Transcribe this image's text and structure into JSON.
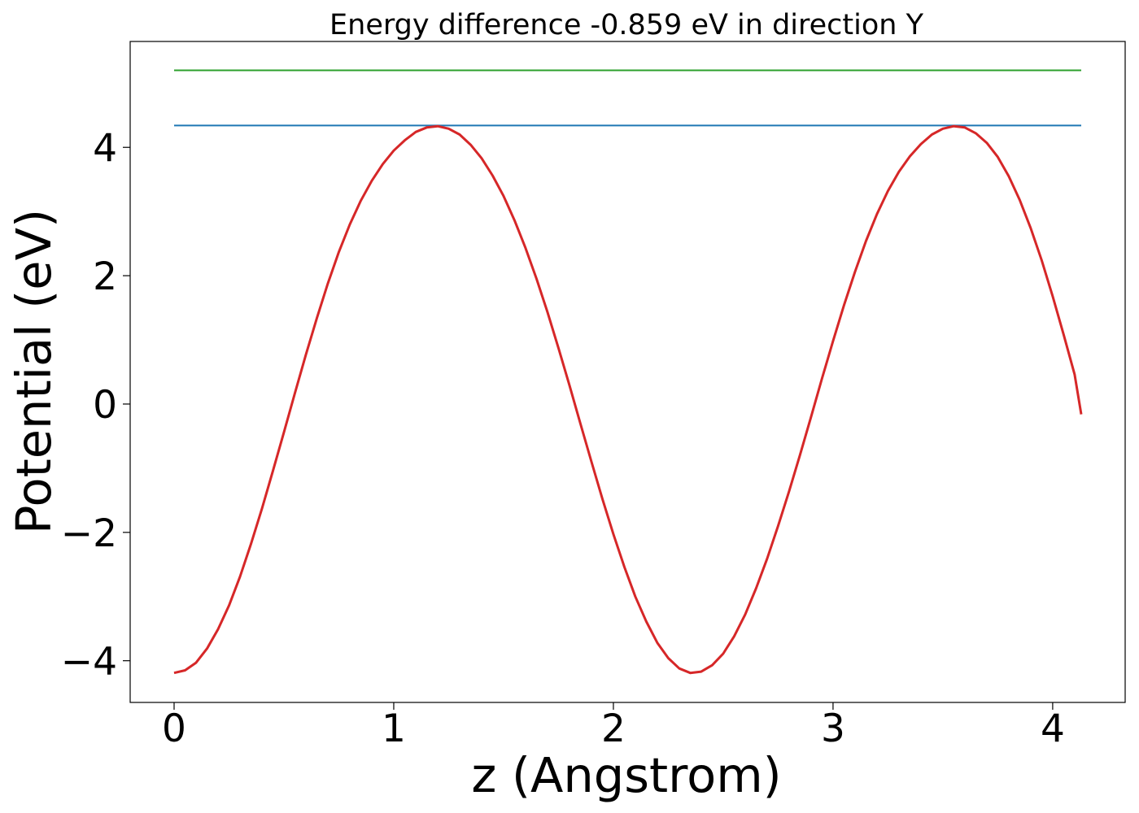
{
  "chart_data": {
    "type": "line",
    "title": "Energy difference -0.859 eV in direction Y",
    "xlabel": "z (Angstrom)",
    "ylabel": "Potential (eV)",
    "xlim": [
      -0.2,
      4.33
    ],
    "ylim": [
      -4.65,
      5.65
    ],
    "xticks": [
      0,
      1,
      2,
      3,
      4
    ],
    "xtick_labels": [
      "0",
      "1",
      "2",
      "3",
      "4"
    ],
    "yticks": [
      -4,
      -2,
      0,
      2,
      4
    ],
    "ytick_labels": [
      "−4",
      "−2",
      "0",
      "2",
      "4"
    ],
    "grid": false,
    "legend": "none",
    "series": [
      {
        "kind": "hline",
        "color": "#2ca02c",
        "y": 5.2,
        "x_range": [
          0,
          4.13
        ]
      },
      {
        "kind": "hline",
        "color": "#1f77b4",
        "y": 4.34,
        "x_range": [
          0,
          4.13
        ]
      },
      {
        "kind": "line",
        "color": "#d62728",
        "x": [
          0,
          0.05,
          0.1,
          0.15,
          0.2,
          0.25,
          0.3,
          0.35,
          0.4,
          0.45,
          0.5,
          0.55,
          0.6,
          0.65,
          0.7,
          0.75,
          0.8,
          0.85,
          0.9,
          0.95,
          1.0,
          1.05,
          1.1,
          1.15,
          1.2,
          1.25,
          1.3,
          1.35,
          1.4,
          1.45,
          1.5,
          1.55,
          1.6,
          1.65,
          1.7,
          1.75,
          1.8,
          1.85,
          1.9,
          1.95,
          2.0,
          2.05,
          2.1,
          2.15,
          2.2,
          2.25,
          2.3,
          2.35,
          2.4,
          2.45,
          2.5,
          2.55,
          2.6,
          2.65,
          2.7,
          2.75,
          2.8,
          2.85,
          2.9,
          2.95,
          3.0,
          3.05,
          3.1,
          3.15,
          3.2,
          3.25,
          3.3,
          3.35,
          3.4,
          3.45,
          3.5,
          3.55,
          3.6,
          3.65,
          3.7,
          3.75,
          3.8,
          3.85,
          3.9,
          3.95,
          4.0,
          4.05,
          4.1,
          4.13
        ],
        "y": [
          -4.19,
          -4.15,
          -4.03,
          -3.81,
          -3.51,
          -3.14,
          -2.69,
          -2.18,
          -1.63,
          -1.04,
          -0.44,
          0.17,
          0.77,
          1.34,
          1.88,
          2.37,
          2.8,
          3.17,
          3.48,
          3.74,
          3.95,
          4.11,
          4.24,
          4.31,
          4.33,
          4.29,
          4.2,
          4.04,
          3.83,
          3.56,
          3.24,
          2.86,
          2.43,
          1.95,
          1.43,
          0.87,
          0.29,
          -0.31,
          -0.9,
          -1.48,
          -2.03,
          -2.54,
          -3.0,
          -3.39,
          -3.72,
          -3.96,
          -4.12,
          -4.19,
          -4.17,
          -4.07,
          -3.89,
          -3.62,
          -3.28,
          -2.87,
          -2.41,
          -1.9,
          -1.36,
          -0.79,
          -0.2,
          0.4,
          0.98,
          1.54,
          2.06,
          2.54,
          2.96,
          3.32,
          3.62,
          3.86,
          4.05,
          4.2,
          4.29,
          4.33,
          4.31,
          4.22,
          4.07,
          3.85,
          3.55,
          3.18,
          2.74,
          2.24,
          1.68,
          1.08,
          0.46,
          -0.16
        ]
      }
    ]
  }
}
